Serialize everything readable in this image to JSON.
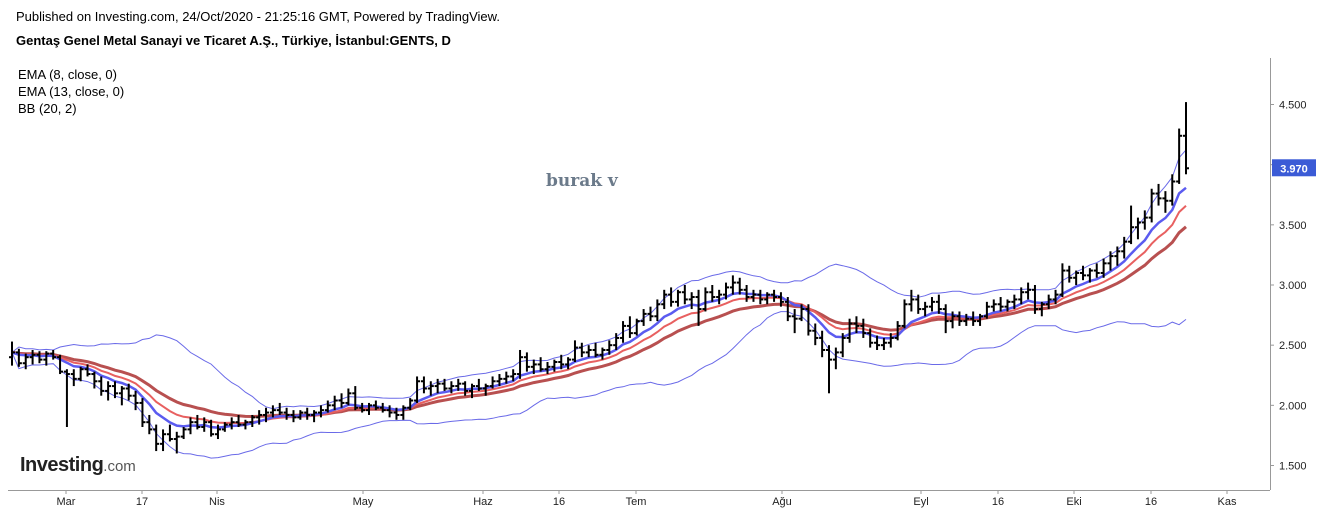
{
  "header": {
    "published": "Published on Investing.com, 24/Oct/2020 - 21:25:16 GMT, Powered by TradingView.",
    "symbol_title": "Gentaş Genel Metal Sanayi ve Ticaret A.Ş., Türkiye, İstanbul:GENTS, D"
  },
  "indicators": [
    "EMA (8, close, 0)",
    "EMA (13, close, 0)",
    "BB (20, 2)"
  ],
  "author_label": "burak v",
  "logo": {
    "main": "Investing",
    "suffix": ".com"
  },
  "colors": {
    "price_bar": "#000000",
    "ema8": "#5b5bf0",
    "ema13": "#e86060",
    "slow_ema": "#b85050",
    "bollinger": "#6a6ae8",
    "last_price_badge": "#3b5bd6",
    "axis": "#999999"
  },
  "chart_data": {
    "type": "ohlc",
    "y_axis": {
      "ticks": [
        "4.500",
        "4.000",
        "3.500",
        "3.000",
        "2.500",
        "2.000",
        "1.500"
      ],
      "ylim": [
        1.5,
        4.5
      ]
    },
    "x_axis": {
      "ticks": [
        "Mar",
        "17",
        "Nis",
        "May",
        "Haz",
        "16",
        "Tem",
        "Ağu",
        "Eyl",
        "16",
        "Eki",
        "16",
        "Kas"
      ]
    },
    "last_price": "3.970",
    "bars": [
      [
        2.4,
        2.53,
        2.33,
        2.44
      ],
      [
        2.44,
        2.47,
        2.32,
        2.35
      ],
      [
        2.35,
        2.43,
        2.3,
        2.4
      ],
      [
        2.4,
        2.46,
        2.34,
        2.42
      ],
      [
        2.42,
        2.45,
        2.35,
        2.38
      ],
      [
        2.38,
        2.45,
        2.33,
        2.43
      ],
      [
        2.43,
        2.46,
        2.38,
        2.4
      ],
      [
        2.4,
        2.42,
        2.26,
        2.28
      ],
      [
        2.28,
        2.3,
        1.82,
        2.26
      ],
      [
        2.26,
        2.3,
        2.16,
        2.22
      ],
      [
        2.22,
        2.32,
        2.2,
        2.3
      ],
      [
        2.3,
        2.34,
        2.24,
        2.26
      ],
      [
        2.26,
        2.28,
        2.14,
        2.2
      ],
      [
        2.2,
        2.24,
        2.08,
        2.12
      ],
      [
        2.12,
        2.2,
        2.04,
        2.16
      ],
      [
        2.16,
        2.2,
        2.06,
        2.1
      ],
      [
        2.1,
        2.16,
        2.0,
        2.14
      ],
      [
        2.14,
        2.18,
        2.04,
        2.08
      ],
      [
        2.08,
        2.12,
        1.96,
        2.02
      ],
      [
        2.02,
        2.06,
        1.82,
        1.86
      ],
      [
        1.86,
        1.92,
        1.76,
        1.8
      ],
      [
        1.8,
        1.84,
        1.62,
        1.68
      ],
      [
        1.68,
        1.8,
        1.62,
        1.76
      ],
      [
        1.76,
        1.84,
        1.7,
        1.72
      ],
      [
        1.72,
        1.78,
        1.6,
        1.74
      ],
      [
        1.74,
        1.82,
        1.72,
        1.8
      ],
      [
        1.8,
        1.9,
        1.76,
        1.86
      ],
      [
        1.86,
        1.92,
        1.8,
        1.82
      ],
      [
        1.82,
        1.9,
        1.78,
        1.86
      ],
      [
        1.86,
        1.88,
        1.74,
        1.76
      ],
      [
        1.76,
        1.84,
        1.72,
        1.8
      ],
      [
        1.8,
        1.86,
        1.78,
        1.84
      ],
      [
        1.84,
        1.9,
        1.8,
        1.86
      ],
      [
        1.86,
        1.92,
        1.82,
        1.84
      ],
      [
        1.84,
        1.88,
        1.8,
        1.86
      ],
      [
        1.86,
        1.92,
        1.82,
        1.9
      ],
      [
        1.9,
        1.96,
        1.84,
        1.92
      ],
      [
        1.92,
        1.98,
        1.86,
        1.94
      ],
      [
        1.94,
        2.0,
        1.9,
        1.96
      ],
      [
        1.96,
        2.02,
        1.92,
        1.94
      ],
      [
        1.94,
        1.98,
        1.88,
        1.92
      ],
      [
        1.92,
        1.96,
        1.86,
        1.9
      ],
      [
        1.9,
        1.96,
        1.88,
        1.94
      ],
      [
        1.94,
        1.98,
        1.88,
        1.92
      ],
      [
        1.92,
        1.96,
        1.86,
        1.94
      ],
      [
        1.94,
        2.0,
        1.9,
        1.96
      ],
      [
        1.96,
        2.04,
        1.94,
        2.0
      ],
      [
        2.0,
        2.08,
        1.96,
        2.04
      ],
      [
        2.04,
        2.1,
        1.98,
        2.02
      ],
      [
        2.02,
        2.14,
        2.0,
        2.1
      ],
      [
        2.1,
        2.16,
        1.96,
        1.98
      ],
      [
        1.98,
        2.02,
        1.94,
        1.96
      ],
      [
        1.96,
        2.02,
        1.92,
        2.0
      ],
      [
        2.0,
        2.04,
        1.96,
        1.98
      ],
      [
        1.98,
        2.02,
        1.94,
        1.96
      ],
      [
        1.96,
        2.0,
        1.9,
        1.94
      ],
      [
        1.94,
        1.98,
        1.88,
        1.92
      ],
      [
        1.92,
        2.0,
        1.88,
        1.98
      ],
      [
        1.98,
        2.06,
        1.96,
        2.04
      ],
      [
        2.04,
        2.24,
        2.02,
        2.2
      ],
      [
        2.2,
        2.24,
        2.1,
        2.14
      ],
      [
        2.14,
        2.2,
        2.08,
        2.16
      ],
      [
        2.16,
        2.22,
        2.1,
        2.18
      ],
      [
        2.18,
        2.22,
        2.12,
        2.14
      ],
      [
        2.14,
        2.2,
        2.1,
        2.16
      ],
      [
        2.16,
        2.22,
        2.12,
        2.18
      ],
      [
        2.18,
        2.2,
        2.08,
        2.12
      ],
      [
        2.12,
        2.18,
        2.06,
        2.16
      ],
      [
        2.16,
        2.22,
        2.12,
        2.14
      ],
      [
        2.14,
        2.18,
        2.08,
        2.16
      ],
      [
        2.16,
        2.24,
        2.14,
        2.2
      ],
      [
        2.2,
        2.26,
        2.16,
        2.22
      ],
      [
        2.22,
        2.28,
        2.18,
        2.24
      ],
      [
        2.24,
        2.3,
        2.2,
        2.26
      ],
      [
        2.26,
        2.46,
        2.22,
        2.4
      ],
      [
        2.4,
        2.44,
        2.28,
        2.32
      ],
      [
        2.32,
        2.38,
        2.26,
        2.34
      ],
      [
        2.34,
        2.4,
        2.28,
        2.3
      ],
      [
        2.3,
        2.36,
        2.26,
        2.32
      ],
      [
        2.32,
        2.38,
        2.28,
        2.36
      ],
      [
        2.36,
        2.42,
        2.3,
        2.34
      ],
      [
        2.34,
        2.4,
        2.3,
        2.38
      ],
      [
        2.38,
        2.54,
        2.36,
        2.48
      ],
      [
        2.48,
        2.52,
        2.4,
        2.44
      ],
      [
        2.44,
        2.5,
        2.4,
        2.46
      ],
      [
        2.46,
        2.52,
        2.4,
        2.42
      ],
      [
        2.42,
        2.48,
        2.38,
        2.46
      ],
      [
        2.46,
        2.54,
        2.42,
        2.5
      ],
      [
        2.5,
        2.6,
        2.46,
        2.56
      ],
      [
        2.56,
        2.7,
        2.52,
        2.66
      ],
      [
        2.66,
        2.74,
        2.56,
        2.6
      ],
      [
        2.6,
        2.72,
        2.58,
        2.7
      ],
      [
        2.7,
        2.8,
        2.66,
        2.76
      ],
      [
        2.76,
        2.82,
        2.7,
        2.74
      ],
      [
        2.74,
        2.88,
        2.7,
        2.84
      ],
      [
        2.84,
        2.96,
        2.8,
        2.92
      ],
      [
        2.92,
        2.98,
        2.82,
        2.86
      ],
      [
        2.86,
        2.96,
        2.82,
        2.94
      ],
      [
        2.94,
        3.0,
        2.84,
        2.88
      ],
      [
        2.88,
        2.94,
        2.8,
        2.9
      ],
      [
        2.9,
        2.96,
        2.66,
        2.8
      ],
      [
        2.8,
        2.98,
        2.78,
        2.94
      ],
      [
        2.94,
        3.0,
        2.86,
        2.9
      ],
      [
        2.9,
        2.96,
        2.84,
        2.92
      ],
      [
        2.92,
        3.02,
        2.88,
        2.98
      ],
      [
        2.98,
        3.08,
        2.92,
        3.02
      ],
      [
        3.02,
        3.06,
        2.92,
        2.96
      ],
      [
        2.96,
        3.0,
        2.86,
        2.9
      ],
      [
        2.9,
        2.96,
        2.86,
        2.92
      ],
      [
        2.92,
        2.96,
        2.84,
        2.88
      ],
      [
        2.88,
        2.94,
        2.84,
        2.92
      ],
      [
        2.92,
        2.96,
        2.86,
        2.9
      ],
      [
        2.9,
        2.94,
        2.82,
        2.86
      ],
      [
        2.86,
        2.9,
        2.7,
        2.74
      ],
      [
        2.74,
        2.8,
        2.6,
        2.72
      ],
      [
        2.72,
        2.84,
        2.7,
        2.8
      ],
      [
        2.8,
        2.84,
        2.58,
        2.62
      ],
      [
        2.62,
        2.68,
        2.5,
        2.56
      ],
      [
        2.56,
        2.62,
        2.4,
        2.46
      ],
      [
        2.46,
        2.5,
        2.1,
        2.38
      ],
      [
        2.38,
        2.48,
        2.3,
        2.44
      ],
      [
        2.44,
        2.6,
        2.4,
        2.56
      ],
      [
        2.56,
        2.72,
        2.52,
        2.68
      ],
      [
        2.68,
        2.74,
        2.6,
        2.66
      ],
      [
        2.66,
        2.72,
        2.56,
        2.6
      ],
      [
        2.6,
        2.64,
        2.48,
        2.52
      ],
      [
        2.52,
        2.58,
        2.46,
        2.5
      ],
      [
        2.5,
        2.56,
        2.46,
        2.52
      ],
      [
        2.52,
        2.6,
        2.48,
        2.56
      ],
      [
        2.56,
        2.7,
        2.54,
        2.66
      ],
      [
        2.66,
        2.88,
        2.64,
        2.84
      ],
      [
        2.84,
        2.96,
        2.78,
        2.88
      ],
      [
        2.88,
        2.92,
        2.76,
        2.8
      ],
      [
        2.8,
        2.86,
        2.74,
        2.82
      ],
      [
        2.82,
        2.9,
        2.78,
        2.86
      ],
      [
        2.86,
        2.92,
        2.76,
        2.8
      ],
      [
        2.8,
        2.84,
        2.6,
        2.7
      ],
      [
        2.7,
        2.78,
        2.64,
        2.74
      ],
      [
        2.74,
        2.78,
        2.66,
        2.7
      ],
      [
        2.7,
        2.76,
        2.66,
        2.72
      ],
      [
        2.72,
        2.78,
        2.66,
        2.7
      ],
      [
        2.7,
        2.76,
        2.66,
        2.74
      ],
      [
        2.74,
        2.86,
        2.72,
        2.82
      ],
      [
        2.82,
        2.88,
        2.78,
        2.84
      ],
      [
        2.84,
        2.9,
        2.78,
        2.82
      ],
      [
        2.82,
        2.88,
        2.78,
        2.86
      ],
      [
        2.86,
        2.92,
        2.8,
        2.88
      ],
      [
        2.88,
        2.98,
        2.84,
        2.94
      ],
      [
        2.94,
        3.02,
        2.88,
        2.96
      ],
      [
        2.96,
        3.0,
        2.76,
        2.8
      ],
      [
        2.8,
        2.86,
        2.74,
        2.84
      ],
      [
        2.84,
        2.92,
        2.8,
        2.88
      ],
      [
        2.88,
        2.96,
        2.84,
        2.92
      ],
      [
        2.92,
        3.18,
        2.9,
        3.12
      ],
      [
        3.12,
        3.16,
        3.02,
        3.06
      ],
      [
        3.06,
        3.12,
        3.0,
        3.1
      ],
      [
        3.1,
        3.16,
        3.04,
        3.08
      ],
      [
        3.08,
        3.14,
        3.02,
        3.12
      ],
      [
        3.12,
        3.18,
        3.06,
        3.1
      ],
      [
        3.1,
        3.22,
        3.06,
        3.18
      ],
      [
        3.18,
        3.28,
        3.12,
        3.24
      ],
      [
        3.24,
        3.32,
        3.16,
        3.28
      ],
      [
        3.28,
        3.4,
        3.22,
        3.36
      ],
      [
        3.36,
        3.66,
        3.34,
        3.48
      ],
      [
        3.48,
        3.56,
        3.38,
        3.52
      ],
      [
        3.52,
        3.62,
        3.46,
        3.56
      ],
      [
        3.56,
        3.8,
        3.52,
        3.76
      ],
      [
        3.76,
        3.84,
        3.66,
        3.72
      ],
      [
        3.72,
        3.78,
        3.6,
        3.7
      ],
      [
        3.7,
        3.92,
        3.66,
        3.86
      ],
      [
        3.86,
        4.3,
        3.84,
        4.24
      ],
      [
        4.24,
        4.52,
        3.92,
        3.97
      ]
    ]
  }
}
